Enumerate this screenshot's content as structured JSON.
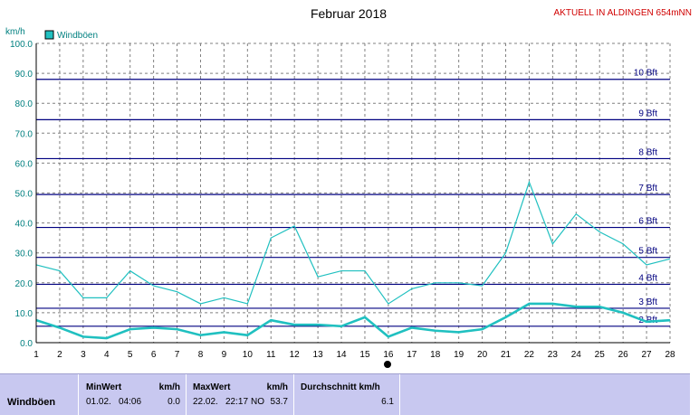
{
  "header": {
    "title": "Februar 2018",
    "station": "AKTUELL IN ALDINGEN 654mNN"
  },
  "chart_data": {
    "type": "line",
    "title": "Februar 2018",
    "ylabel": "km/h",
    "ylim": [
      0,
      100
    ],
    "xlim": [
      1,
      28
    ],
    "y_ticks": [
      "0.0",
      "10.0",
      "20.0",
      "30.0",
      "40.0",
      "50.0",
      "60.0",
      "70.0",
      "80.0",
      "90.0",
      "100.0"
    ],
    "x": [
      1,
      2,
      3,
      4,
      5,
      6,
      7,
      8,
      9,
      10,
      11,
      12,
      13,
      14,
      15,
      16,
      17,
      18,
      19,
      20,
      21,
      22,
      23,
      24,
      25,
      26,
      27,
      28
    ],
    "series": [
      {
        "name": "Windböen",
        "color": "#20c0c0",
        "values": [
          26,
          24,
          15,
          15,
          24,
          19,
          17,
          13,
          15,
          13,
          35,
          39,
          22,
          24,
          24,
          13,
          18,
          20,
          20,
          19,
          30,
          53.7,
          33,
          43,
          37,
          33,
          26,
          28
        ]
      },
      {
        "name": "",
        "color": "#20c0c0",
        "values": [
          7.5,
          5,
          2,
          1.5,
          4.5,
          5,
          4.5,
          2.5,
          3.5,
          2.5,
          7.5,
          6,
          6,
          5.5,
          8.5,
          2,
          5,
          4,
          3.5,
          4.5,
          8.5,
          13,
          13,
          12,
          12,
          10,
          7,
          7.5
        ]
      }
    ],
    "reference_lines": [
      {
        "label": "2 Bft",
        "value": 5.5
      },
      {
        "label": "3 Bft",
        "value": 11.5
      },
      {
        "label": "4 Bft",
        "value": 19.5
      },
      {
        "label": "5 Bft",
        "value": 28.5
      },
      {
        "label": "6 Bft",
        "value": 38.5
      },
      {
        "label": "7 Bft",
        "value": 49.5
      },
      {
        "label": "8 Bft",
        "value": 61.5
      },
      {
        "label": "9 Bft",
        "value": 74.5
      },
      {
        "label": "10 Bft",
        "value": 88
      }
    ],
    "legend": {
      "position": "top-left",
      "entries": [
        "Windböen"
      ]
    },
    "grid": true
  },
  "stats": {
    "row_label": "Windböen",
    "min": {
      "header": "MinWert",
      "unit": "km/h",
      "date": "01.02.",
      "time": "04:06",
      "value": "0.0"
    },
    "max": {
      "header": "MaxWert",
      "unit": "km/h",
      "date": "22.02.",
      "time": "22:17",
      "dir": "NO",
      "value": "53.7"
    },
    "avg": {
      "header": "Durchschnitt km/h",
      "value": "6.1"
    }
  },
  "colors": {
    "grid": "#808080",
    "bft_line": "#000080",
    "series": "#20c0c0",
    "stats_bg": "#c8c8f0"
  }
}
